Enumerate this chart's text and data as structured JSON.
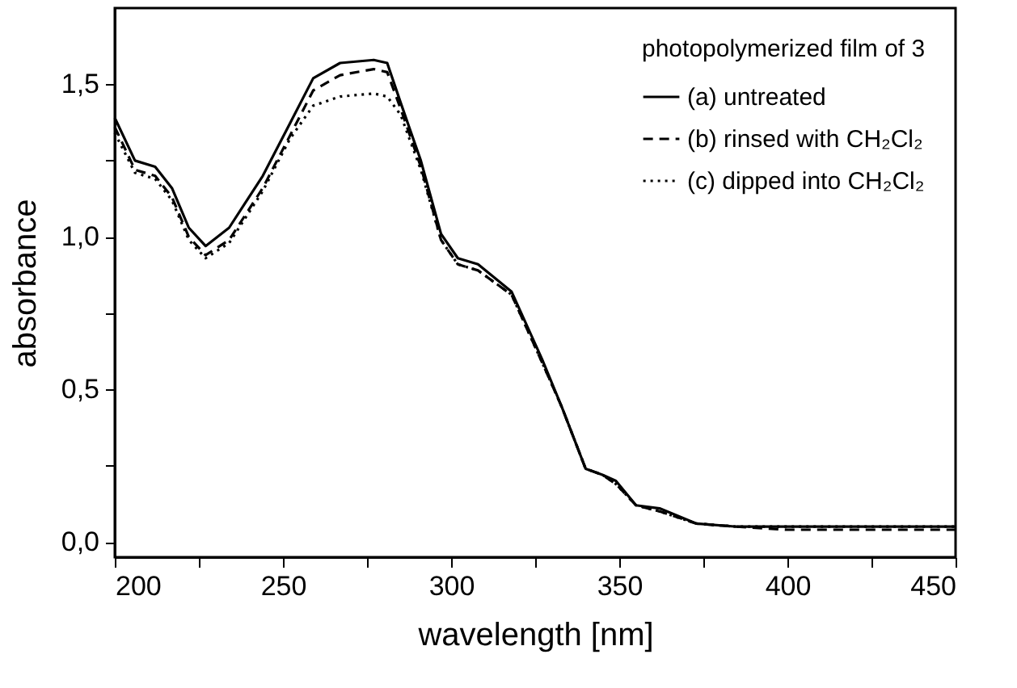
{
  "chart_data": {
    "type": "line",
    "xlabel": "wavelength [nm]",
    "ylabel": "absorbance",
    "legend_title": "photopolymerized film of 3",
    "x": [
      200,
      206,
      212,
      217,
      222,
      227,
      234,
      244,
      252,
      259,
      267,
      277,
      281,
      285,
      291,
      297,
      302,
      308,
      318,
      327,
      333,
      340,
      345,
      349,
      355,
      362,
      373,
      385,
      400,
      450
    ],
    "series": [
      {
        "name": "(a) untreated",
        "color": "#000000",
        "line_style": "solid",
        "values": [
          1.39,
          1.25,
          1.23,
          1.16,
          1.03,
          0.97,
          1.03,
          1.2,
          1.37,
          1.52,
          1.57,
          1.58,
          1.57,
          1.44,
          1.25,
          1.01,
          0.93,
          0.91,
          0.82,
          0.6,
          0.44,
          0.24,
          0.22,
          0.2,
          0.12,
          0.11,
          0.06,
          0.05,
          0.05,
          0.05
        ]
      },
      {
        "name": "(b) rinsed with CH₂Cl₂",
        "color": "#000000",
        "line_style": "dashed",
        "values": [
          1.36,
          1.22,
          1.2,
          1.13,
          1.0,
          0.94,
          0.99,
          1.16,
          1.33,
          1.48,
          1.53,
          1.55,
          1.54,
          1.42,
          1.23,
          0.99,
          0.91,
          0.89,
          0.81,
          0.59,
          0.44,
          0.24,
          0.22,
          0.19,
          0.12,
          0.1,
          0.06,
          0.05,
          0.04,
          0.04
        ]
      },
      {
        "name": "(c) dipped into CH₂Cl₂",
        "color": "#000000",
        "line_style": "dotted",
        "values": [
          1.34,
          1.21,
          1.19,
          1.12,
          0.99,
          0.93,
          0.98,
          1.15,
          1.32,
          1.43,
          1.46,
          1.47,
          1.46,
          1.4,
          1.22,
          0.99,
          0.91,
          0.89,
          0.81,
          0.59,
          0.44,
          0.24,
          0.22,
          0.19,
          0.12,
          0.1,
          0.06,
          0.05,
          0.05,
          0.05
        ]
      }
    ],
    "xlim": [
      200,
      450
    ],
    "ylim": [
      -0.05,
      1.75
    ],
    "xticks": [
      200,
      {
        "value": 225,
        "label": null
      },
      250,
      {
        "value": 275,
        "label": null
      },
      300,
      {
        "value": 325,
        "label": null
      },
      350,
      {
        "value": 375,
        "label": null
      },
      400,
      {
        "value": 425,
        "label": null
      },
      450
    ],
    "yticks": [
      {
        "value": 0,
        "label": "0,0"
      },
      {
        "value": 0.25,
        "label": null
      },
      {
        "value": 0.5,
        "label": "0,5"
      },
      {
        "value": 0.75,
        "label": null
      },
      {
        "value": 1.0,
        "label": "1,0"
      },
      {
        "value": 1.25,
        "label": null
      },
      {
        "value": 1.5,
        "label": "1,5"
      }
    ],
    "grid": false,
    "legend": "top right",
    "marker": "none"
  }
}
